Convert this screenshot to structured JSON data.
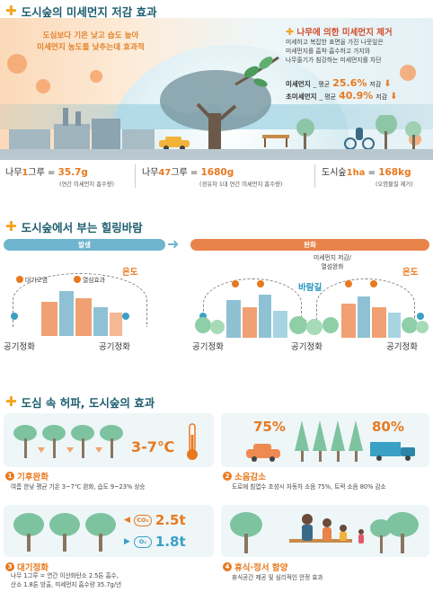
{
  "section1": {
    "title": "도시숲의 미세먼지 저감 효과",
    "left_text_line1": "도심보다 기온 낮고 습도 높아",
    "left_text_line2": "미세먼지 농도를 낮추는데 효과적",
    "right_title": "나무에 의한 미세먼지 제거",
    "right_desc_line1": "미세하고 복잡한 표면을 가진 나뭇잎은",
    "right_desc_line2": "미세먼지를 흡착·흡수하고 가지와",
    "right_desc_line3": "나무줄기가 침강하는 미세먼지를 차단",
    "pm10_label": "미세먼지",
    "pm10_mid": "_ 평균",
    "pm10_value": "25.6%",
    "pm10_suffix": "저감",
    "pm25_label": "초미세먼지",
    "pm25_mid": "_ 평균",
    "pm25_value": "40.9%",
    "pm25_suffix": "저감",
    "stats": [
      {
        "lead": "나무",
        "num": "1",
        "unit": "그루 = ",
        "value": "35.7g",
        "sub": "(연간 미세먼지 흡수량)"
      },
      {
        "lead": "나무",
        "num": "47",
        "unit": "그루 = ",
        "value": "1680g",
        "sub": "(경유차 1대 연간 미세먼지 흡수량)"
      },
      {
        "lead": "도시숲",
        "num": "1ha",
        "unit": " = ",
        "value": "168kg",
        "sub": "(오염물질 제거)"
      }
    ]
  },
  "section2": {
    "title": "도시숲에서 부는 힐링바람",
    "bar_left": "발생",
    "bar_right": "완화",
    "left_air": "대기오염",
    "left_heat": "열섬효과",
    "temp_label": "온도",
    "temp_label_right": "온도",
    "center_text_line1": "미세먼지 저감/",
    "center_text_line2": "열섬완화",
    "wind_label": "바람길",
    "temp_small": "온도",
    "purify_labels": [
      "공기정화",
      "공기정화",
      "공기정화",
      "공기정화",
      "공기정화"
    ]
  },
  "section3": {
    "title": "도심 속 허파, 도시숲의 효과",
    "panels": [
      {
        "num": "1",
        "title": "기후완화",
        "desc_line1": "여름 한낮 평균 기온 3~7℃ 완화, 습도 9~23% 상승",
        "desc_line2": "",
        "highlight": "3-7℃"
      },
      {
        "num": "2",
        "title": "소음감소",
        "desc_line1": "도로에 침엽수 조성시 자동차 소음 75%, 트럭 소음 80% 감소",
        "desc_line2": "",
        "pct_car": "75%",
        "pct_truck": "80%"
      },
      {
        "num": "3",
        "title": "대기정화",
        "desc_line1": "나무 1그루 = 연간 이산화탄소 2.5톤 흡수,",
        "desc_line2": "산소 1.8톤 방출, 미세먼지 흡수량 35.7g/년",
        "co2_chip": "CO₂",
        "co2_val": "2.5t",
        "o2_chip": "O₂",
        "o2_val": "1.8t"
      },
      {
        "num": "4",
        "title": "휴식·정서 함양",
        "desc_line1": "휴식공간 제공 및 심리적인 안정 효과",
        "desc_line2": ""
      }
    ]
  },
  "colors": {
    "accent": "#e8791f",
    "teal": "#1d5e6e",
    "blue": "#2a94bd",
    "bar_blue": "#6fb4cf",
    "bar_orange": "#e8834a"
  }
}
